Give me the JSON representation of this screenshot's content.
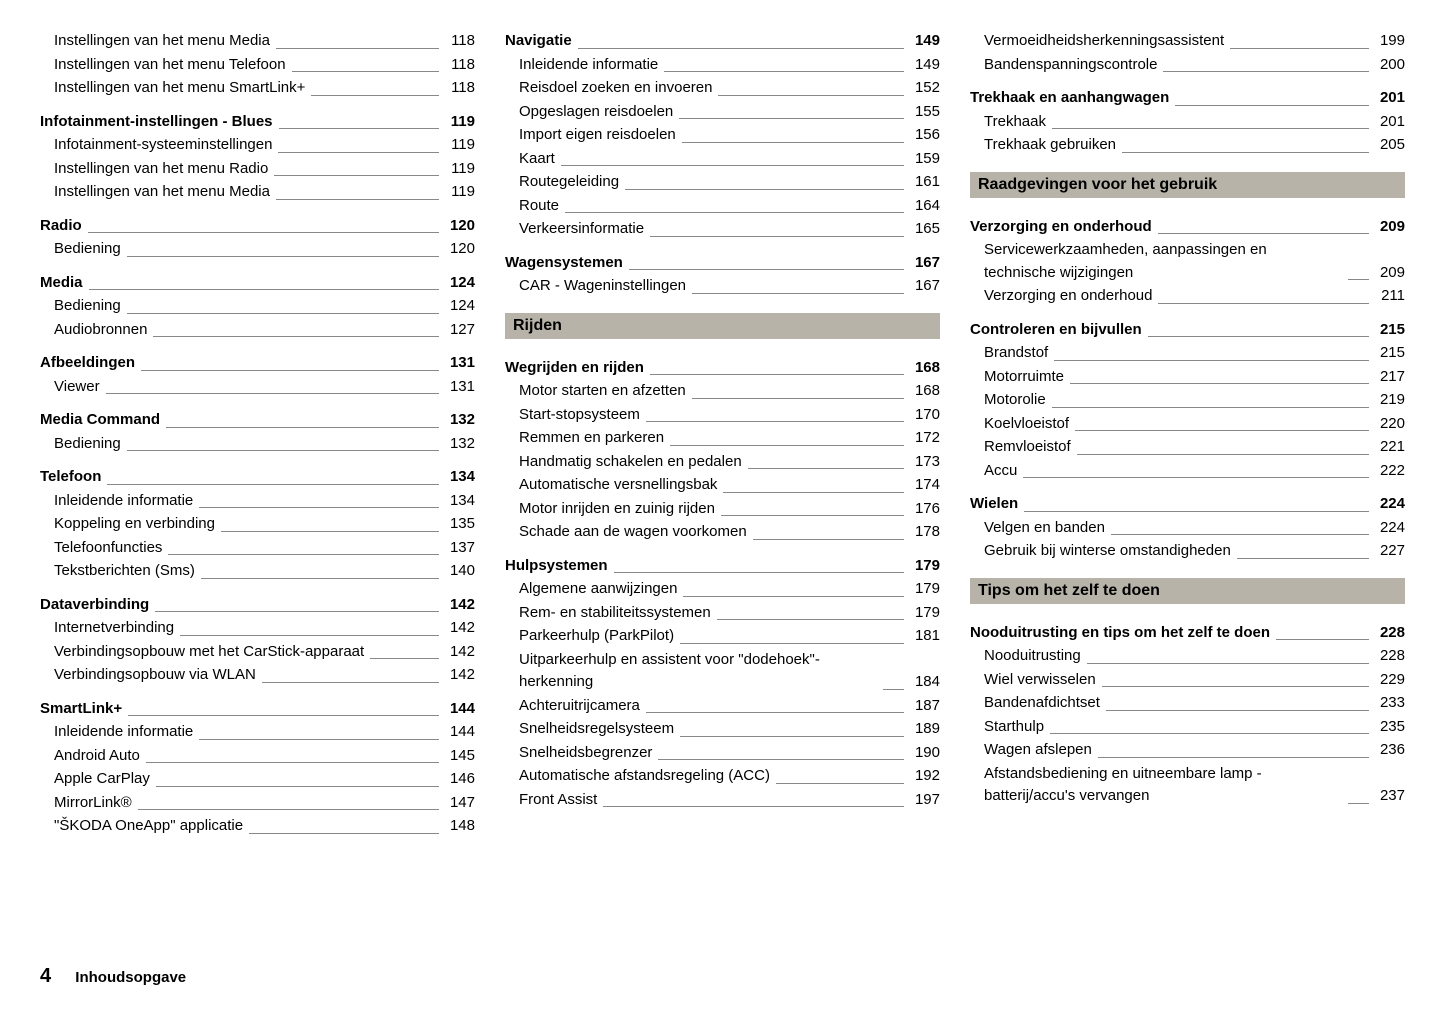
{
  "footer": {
    "page": "4",
    "title": "Inhoudsopgave"
  },
  "col1": [
    {
      "t": "sub",
      "label": "Instellingen van het menu Media",
      "page": "118"
    },
    {
      "t": "sub",
      "label": "Instellingen van het menu Telefoon",
      "page": "118"
    },
    {
      "t": "sub",
      "label": "Instellingen van het menu SmartLink+",
      "page": "118"
    },
    {
      "t": "main",
      "label": "Infotainment-instellingen - Blues",
      "page": "119"
    },
    {
      "t": "sub",
      "label": "Infotainment-systeeminstellingen",
      "page": "119"
    },
    {
      "t": "sub",
      "label": "Instellingen van het menu Radio",
      "page": "119"
    },
    {
      "t": "sub",
      "label": "Instellingen van het menu Media",
      "page": "119"
    },
    {
      "t": "main",
      "label": "Radio",
      "page": "120"
    },
    {
      "t": "sub",
      "label": "Bediening",
      "page": "120"
    },
    {
      "t": "main",
      "label": "Media",
      "page": "124"
    },
    {
      "t": "sub",
      "label": "Bediening",
      "page": "124"
    },
    {
      "t": "sub",
      "label": "Audiobronnen",
      "page": "127"
    },
    {
      "t": "main",
      "label": "Afbeeldingen",
      "page": "131"
    },
    {
      "t": "sub",
      "label": "Viewer",
      "page": "131"
    },
    {
      "t": "main",
      "label": "Media Command",
      "page": "132"
    },
    {
      "t": "sub",
      "label": "Bediening",
      "page": "132"
    },
    {
      "t": "main",
      "label": "Telefoon",
      "page": "134"
    },
    {
      "t": "sub",
      "label": "Inleidende informatie",
      "page": "134"
    },
    {
      "t": "sub",
      "label": "Koppeling en verbinding",
      "page": "135"
    },
    {
      "t": "sub",
      "label": "Telefoonfuncties",
      "page": "137"
    },
    {
      "t": "sub",
      "label": "Tekstberichten (Sms)",
      "page": "140"
    },
    {
      "t": "main",
      "label": "Dataverbinding",
      "page": "142"
    },
    {
      "t": "sub",
      "label": "Internetverbinding",
      "page": "142"
    },
    {
      "t": "sub",
      "label": "Verbindingsopbouw met het CarStick-apparaat",
      "page": "142"
    },
    {
      "t": "sub",
      "label": "Verbindingsopbouw via WLAN",
      "page": "142"
    },
    {
      "t": "main",
      "label": "SmartLink+",
      "page": "144"
    },
    {
      "t": "sub",
      "label": "Inleidende informatie",
      "page": "144"
    },
    {
      "t": "sub",
      "label": "Android Auto",
      "page": "145"
    },
    {
      "t": "sub",
      "label": "Apple CarPlay",
      "page": "146"
    },
    {
      "t": "sub",
      "label": "MirrorLink®",
      "page": "147"
    },
    {
      "t": "sub",
      "label": "\"ŠKODA OneApp\" applicatie",
      "page": "148"
    }
  ],
  "col2": [
    {
      "t": "main",
      "label": "Navigatie",
      "page": "149",
      "notop": true
    },
    {
      "t": "sub",
      "label": "Inleidende informatie",
      "page": "149"
    },
    {
      "t": "sub",
      "label": "Reisdoel zoeken en invoeren",
      "page": "152"
    },
    {
      "t": "sub",
      "label": "Opgeslagen reisdoelen",
      "page": "155"
    },
    {
      "t": "sub",
      "label": "Import eigen reisdoelen",
      "page": "156"
    },
    {
      "t": "sub",
      "label": "Kaart",
      "page": "159"
    },
    {
      "t": "sub",
      "label": "Routegeleiding",
      "page": "161"
    },
    {
      "t": "sub",
      "label": "Route",
      "page": "164"
    },
    {
      "t": "sub",
      "label": "Verkeersinformatie",
      "page": "165"
    },
    {
      "t": "main",
      "label": "Wagensystemen",
      "page": "167"
    },
    {
      "t": "sub",
      "label": "CAR - Wageninstellingen",
      "page": "167"
    },
    {
      "t": "bar",
      "label": "Rijden"
    },
    {
      "t": "main",
      "label": "Wegrijden en rijden",
      "page": "168"
    },
    {
      "t": "sub",
      "label": "Motor starten en afzetten",
      "page": "168"
    },
    {
      "t": "sub",
      "label": "Start-stopsysteem",
      "page": "170"
    },
    {
      "t": "sub",
      "label": "Remmen en parkeren",
      "page": "172"
    },
    {
      "t": "sub",
      "label": "Handmatig schakelen en pedalen",
      "page": "173"
    },
    {
      "t": "sub",
      "label": "Automatische versnellingsbak",
      "page": "174"
    },
    {
      "t": "sub",
      "label": "Motor inrijden en zuinig rijden",
      "page": "176"
    },
    {
      "t": "sub",
      "label": "Schade aan de wagen voorkomen",
      "page": "178"
    },
    {
      "t": "main",
      "label": "Hulpsystemen",
      "page": "179"
    },
    {
      "t": "sub",
      "label": "Algemene aanwijzingen",
      "page": "179"
    },
    {
      "t": "sub",
      "label": "Rem- en stabiliteitssystemen",
      "page": "179"
    },
    {
      "t": "sub",
      "label": "Parkeerhulp (ParkPilot)",
      "page": "181"
    },
    {
      "t": "sub",
      "label": "Uitparkeerhulp en assistent voor \"dodehoek\"-herkenning",
      "page": "184"
    },
    {
      "t": "sub",
      "label": "Achteruitrijcamera",
      "page": "187"
    },
    {
      "t": "sub",
      "label": "Snelheidsregelsysteem",
      "page": "189"
    },
    {
      "t": "sub",
      "label": "Snelheidsbegrenzer",
      "page": "190"
    },
    {
      "t": "sub",
      "label": "Automatische afstandsregeling (ACC)",
      "page": "192"
    },
    {
      "t": "sub",
      "label": "Front Assist",
      "page": "197"
    }
  ],
  "col3": [
    {
      "t": "sub",
      "label": "Vermoeidheidsherkenningsassistent",
      "page": "199"
    },
    {
      "t": "sub",
      "label": "Bandenspanningscontrole",
      "page": "200"
    },
    {
      "t": "main",
      "label": "Trekhaak en aanhangwagen",
      "page": "201"
    },
    {
      "t": "sub",
      "label": "Trekhaak",
      "page": "201"
    },
    {
      "t": "sub",
      "label": "Trekhaak gebruiken",
      "page": "205"
    },
    {
      "t": "bar",
      "label": "Raadgevingen voor het gebruik"
    },
    {
      "t": "main",
      "label": "Verzorging en onderhoud",
      "page": "209"
    },
    {
      "t": "sub",
      "label": "Servicewerkzaamheden, aanpassingen en technische wijzigingen",
      "page": "209"
    },
    {
      "t": "sub",
      "label": "Verzorging en onderhoud",
      "page": "211"
    },
    {
      "t": "main",
      "label": "Controleren en bijvullen",
      "page": "215"
    },
    {
      "t": "sub",
      "label": "Brandstof",
      "page": "215"
    },
    {
      "t": "sub",
      "label": "Motorruimte",
      "page": "217"
    },
    {
      "t": "sub",
      "label": "Motorolie",
      "page": "219"
    },
    {
      "t": "sub",
      "label": "Koelvloeistof",
      "page": "220"
    },
    {
      "t": "sub",
      "label": "Remvloeistof",
      "page": "221"
    },
    {
      "t": "sub",
      "label": "Accu",
      "page": "222"
    },
    {
      "t": "main",
      "label": "Wielen",
      "page": "224"
    },
    {
      "t": "sub",
      "label": "Velgen en banden",
      "page": "224"
    },
    {
      "t": "sub",
      "label": "Gebruik bij winterse omstandigheden",
      "page": "227"
    },
    {
      "t": "bar",
      "label": "Tips om het zelf te doen"
    },
    {
      "t": "main",
      "label": "Nooduitrusting en tips om het zelf te doen",
      "page": "228"
    },
    {
      "t": "sub",
      "label": "Nooduitrusting",
      "page": "228"
    },
    {
      "t": "sub",
      "label": "Wiel verwisselen",
      "page": "229"
    },
    {
      "t": "sub",
      "label": "Bandenafdichtset",
      "page": "233"
    },
    {
      "t": "sub",
      "label": "Starthulp",
      "page": "235"
    },
    {
      "t": "sub",
      "label": "Wagen afslepen",
      "page": "236"
    },
    {
      "t": "sub",
      "label": "Afstandsbediening en uitneembare lamp - batterij/accu's vervangen",
      "page": "237"
    }
  ]
}
